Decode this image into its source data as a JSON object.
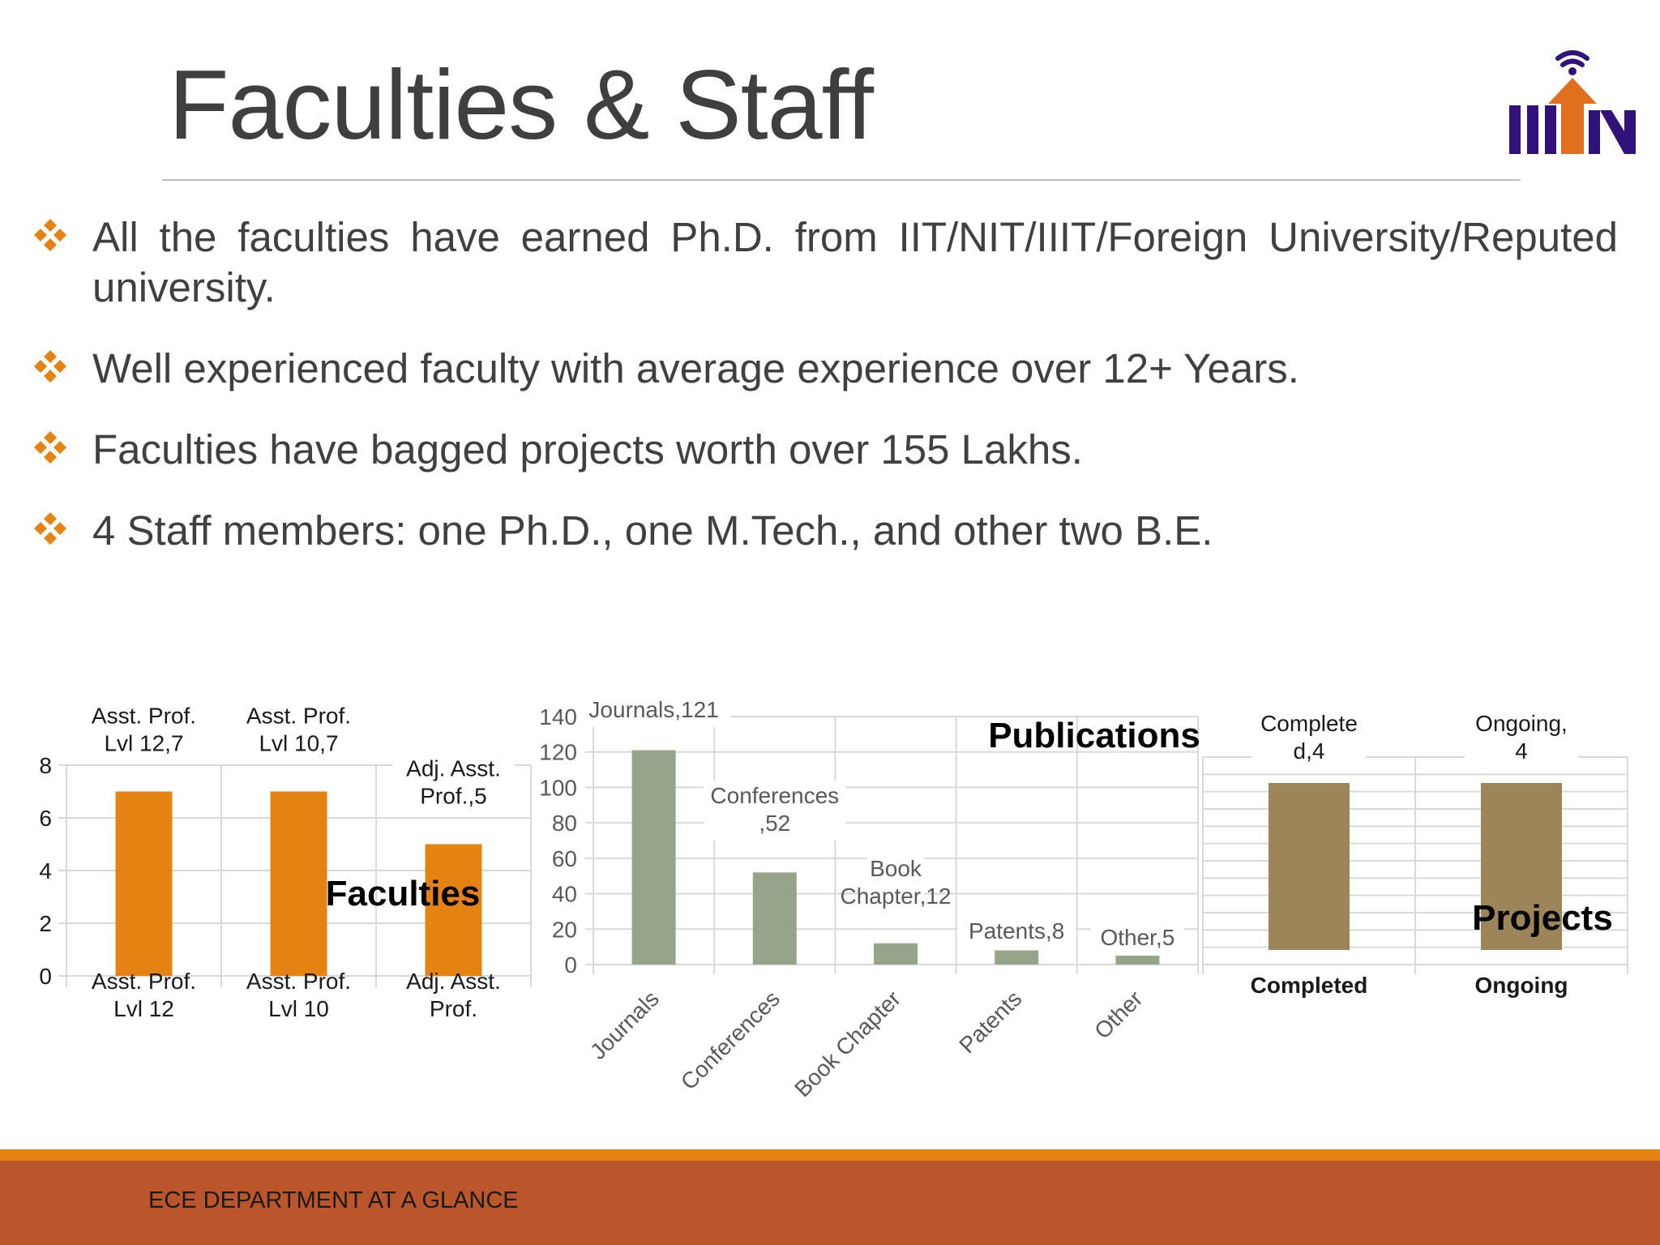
{
  "slide": {
    "title": "Faculties & Staff",
    "footer": "ECE DEPARTMENT AT A GLANCE",
    "logo_icon": "iiitn-logo-icon",
    "bullet_icon": "orange-diamond-cluster-icon",
    "bullets": [
      "All the faculties have earned Ph.D. from IIT/NIT/IIIT/Foreign University/Reputed university.",
      "Well experienced faculty with average experience over 12+ Years.",
      "Faculties have bagged projects worth over 155 Lakhs.",
      "4 Staff members: one Ph.D., one M.Tech., and other two B.E."
    ],
    "colors": {
      "accent_orange": "#e48312",
      "footer_red": "#bb552c",
      "pub_bar": "#96a48a",
      "proj_bar": "#9c8558",
      "logo_purple": "#31127a"
    }
  },
  "chart_data": [
    {
      "type": "bar",
      "title": "Faculties",
      "categories": [
        "Asst. Prof. Lvl 12",
        "Asst. Prof. Lvl 10",
        "Adj. Asst. Prof."
      ],
      "values": [
        7,
        7,
        5
      ],
      "data_labels": [
        "Asst. Prof. Lvl 12,7",
        "Asst. Prof. Lvl 10,7",
        "Adj. Asst. Prof.,5"
      ],
      "ylim": [
        0,
        8
      ],
      "yticks": [
        0,
        2,
        4,
        6,
        8
      ],
      "grid": true,
      "color": "#e48312"
    },
    {
      "type": "bar",
      "title": "Publications",
      "categories": [
        "Journals",
        "Conferences",
        "Book Chapter",
        "Patents",
        "Other"
      ],
      "values": [
        121,
        52,
        12,
        8,
        5
      ],
      "data_labels": [
        "Journals,121",
        "Conferences ,52",
        "Book Chapter,12",
        "Patents,8",
        "Other,5"
      ],
      "ylim": [
        0,
        140
      ],
      "yticks": [
        0,
        20,
        40,
        60,
        80,
        100,
        120,
        140
      ],
      "grid": true,
      "color": "#96a48a"
    },
    {
      "type": "bar",
      "title": "Projects",
      "categories": [
        "Completed",
        "Ongoing"
      ],
      "values": [
        4,
        4
      ],
      "data_labels": [
        "Complete d,4",
        "Ongoing, 4"
      ],
      "grid": true,
      "color": "#9c8558"
    }
  ]
}
